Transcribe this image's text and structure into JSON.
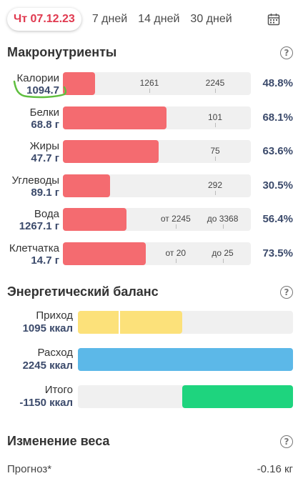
{
  "tabs": {
    "active": "Чт 07.12.23",
    "items": [
      "7 дней",
      "14 дней",
      "30 дней"
    ],
    "calendar_icon": "calendar-icon"
  },
  "macros": {
    "title": "Макронутриенты",
    "help_icon": "question-circle-icon",
    "bar_color": "#f46b70",
    "rows": [
      {
        "name": "Калории",
        "value": "1094.7",
        "percent": "48.8%",
        "fill": 0.17,
        "labels": [
          {
            "text": "1261",
            "at": 0.46
          },
          {
            "text": "2245",
            "at": 0.81
          }
        ]
      },
      {
        "name": "Белки",
        "value": "68.8 г",
        "percent": "68.1%",
        "fill": 0.55,
        "labels": [
          {
            "text": "101",
            "at": 0.81
          }
        ]
      },
      {
        "name": "Жиры",
        "value": "47.7 г",
        "percent": "63.6%",
        "fill": 0.51,
        "labels": [
          {
            "text": "75",
            "at": 0.81
          }
        ]
      },
      {
        "name": "Углеводы",
        "value": "89.1 г",
        "percent": "30.5%",
        "fill": 0.25,
        "labels": [
          {
            "text": "292",
            "at": 0.81
          }
        ]
      },
      {
        "name": "Вода",
        "value": "1267.1 г",
        "percent": "56.4%",
        "fill": 0.34,
        "labels": [
          {
            "text": "от 2245",
            "at": 0.6
          },
          {
            "text": "до 3368",
            "at": 0.85
          }
        ]
      },
      {
        "name": "Клетчатка",
        "value": "14.7 г",
        "percent": "73.5%",
        "fill": 0.44,
        "labels": [
          {
            "text": "от 20",
            "at": 0.6
          },
          {
            "text": "до 25",
            "at": 0.85
          }
        ]
      }
    ]
  },
  "energy": {
    "title": "Энергетический баланс",
    "help_icon": "question-circle-icon",
    "rows": [
      {
        "name": "Приход",
        "value": "1095 ккал",
        "color": "#fce17a",
        "start": 0.0,
        "fill": 0.485,
        "split": 0.19
      },
      {
        "name": "Расход",
        "value": "2245 ккал",
        "color": "#5cb8e8",
        "start": 0.0,
        "fill": 1.0
      },
      {
        "name": "Итого",
        "value": "-1150 ккал",
        "color": "#1ed47e",
        "start": 0.485,
        "fill": 0.515
      }
    ]
  },
  "weight": {
    "title": "Изменение веса",
    "help_icon": "question-circle-icon",
    "forecast_label": "Прогноз*",
    "forecast_value": "-0.16 кг"
  }
}
